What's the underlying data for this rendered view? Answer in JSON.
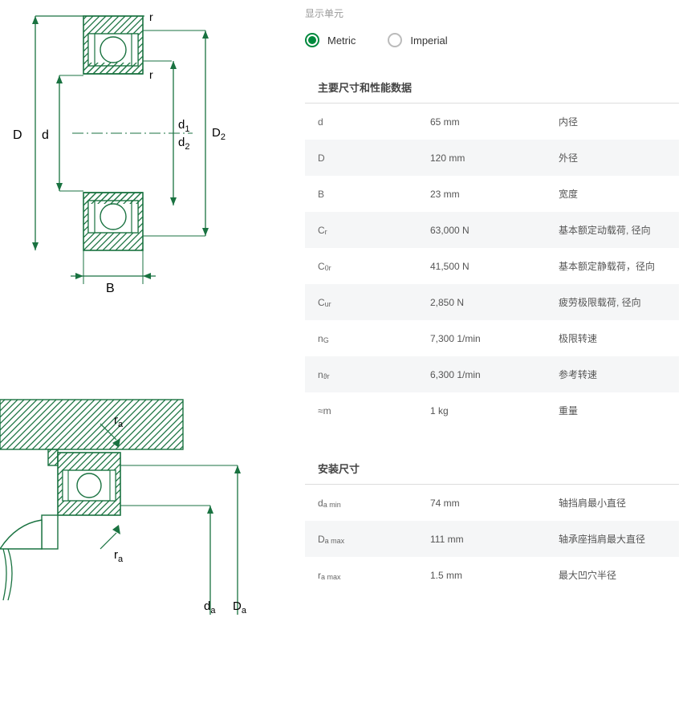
{
  "unit_label": "显示单元",
  "radio": {
    "metric": "Metric",
    "imperial": "Imperial",
    "selected": "metric"
  },
  "colors": {
    "accent": "#01893d",
    "diagram_stroke": "#197240",
    "hatch": "#197240",
    "bg_alt": "#f5f6f7",
    "border": "#dddddd",
    "text_muted": "#999999",
    "text_body": "#555555"
  },
  "sections": [
    {
      "title": "主要尺寸和性能数据",
      "rows": [
        {
          "symbol": "d",
          "sub": "",
          "value": "65 mm",
          "desc": "内径"
        },
        {
          "symbol": "D",
          "sub": "",
          "value": "120 mm",
          "desc": "外径"
        },
        {
          "symbol": "B",
          "sub": "",
          "value": "23 mm",
          "desc": "宽度"
        },
        {
          "symbol": "C",
          "sub": "r",
          "value": "63,000 N",
          "desc": "基本额定动载荷, 径向"
        },
        {
          "symbol": "C",
          "sub": "0r",
          "value": "41,500 N",
          "desc": "基本额定静载荷，径向"
        },
        {
          "symbol": "C",
          "sub": "ur",
          "value": "2,850 N",
          "desc": "疲劳极限载荷, 径向"
        },
        {
          "symbol": "n",
          "sub": "G",
          "value": "7,300 1/min",
          "desc": "极限转速"
        },
        {
          "symbol": "n",
          "sub": "ϑr",
          "value": "6,300 1/min",
          "desc": "参考转速"
        },
        {
          "symbol": "≈m",
          "sub": "",
          "value": "1 kg",
          "desc": "重量"
        }
      ]
    },
    {
      "title": "安装尺寸",
      "rows": [
        {
          "symbol": "d",
          "sub": "a min",
          "value": "74 mm",
          "desc": "轴挡肩最小直径"
        },
        {
          "symbol": "D",
          "sub": "a max",
          "value": "111 mm",
          "desc": "轴承座挡肩最大直径"
        },
        {
          "symbol": "r",
          "sub": "a max",
          "value": "1.5 mm",
          "desc": "最大凹穴半径"
        }
      ]
    }
  ],
  "diagram1_labels": {
    "D": "D",
    "d": "d",
    "d1": "d",
    "d1_sub": "1",
    "d2": "d",
    "d2_sub": "2",
    "D2": "D",
    "D2_sub": "2",
    "r_top": "r",
    "r_mid": "r",
    "B": "B"
  },
  "diagram2_labels": {
    "ra1": "r",
    "ra1_sub": "a",
    "ra2": "r",
    "ra2_sub": "a",
    "da": "d",
    "da_sub": "a",
    "Da": "D",
    "Da_sub": "a"
  }
}
